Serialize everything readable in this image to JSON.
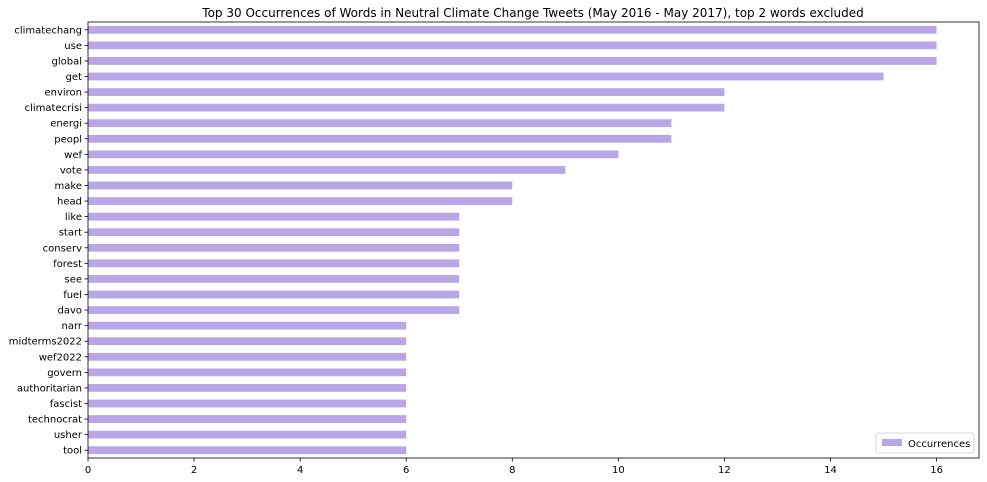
{
  "chart_data": {
    "type": "bar",
    "orientation": "horizontal",
    "title": "Top 30 Occurrences of Words in Neutral Climate Change Tweets (May 2016 - May 2017), top 2 words excluded",
    "xlabel": "",
    "ylabel": "",
    "xlim": [
      0,
      16.8
    ],
    "xticks": [
      0,
      2,
      4,
      6,
      8,
      10,
      12,
      14,
      16
    ],
    "grid": false,
    "legend_position": "bottom-right",
    "bar_color": "#b9a6e6",
    "categories": [
      "climatechang",
      "use",
      "global",
      "get",
      "environ",
      "climatecrisi",
      "energi",
      "peopl",
      "wef",
      "vote",
      "make",
      "head",
      "like",
      "start",
      "conserv",
      "forest",
      "see",
      "fuel",
      "davo",
      "narr",
      "midterms2022",
      "wef2022",
      "govern",
      "authoritarian",
      "fascist",
      "technocrat",
      "usher",
      "tool"
    ],
    "series": [
      {
        "name": "Occurrences",
        "values": [
          16,
          16,
          16,
          15,
          12,
          12,
          11,
          11,
          10,
          9,
          8,
          8,
          7,
          7,
          7,
          7,
          7,
          7,
          7,
          6,
          6,
          6,
          6,
          6,
          6,
          6,
          6,
          6
        ]
      }
    ]
  }
}
